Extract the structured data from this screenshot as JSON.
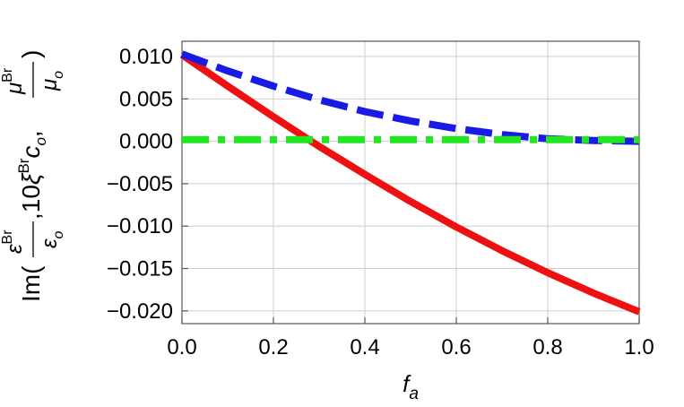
{
  "chart_data": {
    "type": "line",
    "title": "",
    "xlabel": {
      "main": "f",
      "sub": "a"
    },
    "ylabel": {
      "prefix": "Im(",
      "t1_num_main": "ε",
      "t1_num_sup": "Br",
      "t1_den_main": "ε",
      "t1_den_sub": "o",
      "middle": ",10",
      "t2_main1": "ξ",
      "t2_sup": "Br",
      "t2_main2": "c",
      "t2_sub": "o",
      "comma": ",",
      "t3_num_main": "μ",
      "t3_num_sup": "Br",
      "t3_den_main": "μ",
      "t3_den_sub": "o",
      "suffix": ")"
    },
    "xlim": [
      0,
      1
    ],
    "ylim": [
      -0.0215,
      0.0118
    ],
    "x_ticks": [
      0.0,
      0.2,
      0.4,
      0.6,
      0.8,
      1.0
    ],
    "x_tick_labels": [
      "0.0",
      "0.2",
      "0.4",
      "0.6",
      "0.8",
      "1.0"
    ],
    "y_ticks": [
      0.01,
      0.005,
      0.0,
      -0.005,
      -0.01,
      -0.015,
      -0.02
    ],
    "y_tick_labels": [
      "0.010",
      "0.005",
      "0.000",
      "−0.005",
      "−0.010",
      "−0.015",
      "−0.020"
    ],
    "grid": true,
    "legend": "none",
    "series": [
      {
        "color": "#ee1111",
        "style": "solid",
        "x": [
          0,
          0.1,
          0.2,
          0.3,
          0.4,
          0.5,
          0.6,
          0.7,
          0.8,
          0.9,
          1.0
        ],
        "y": [
          0.0102,
          0.0065,
          0.0029,
          -0.0006,
          -0.0039,
          -0.0071,
          -0.0101,
          -0.0129,
          -0.0155,
          -0.0179,
          -0.0201
        ]
      },
      {
        "color": "#1a1ae6",
        "style": "dashed",
        "x": [
          0,
          0.1,
          0.2,
          0.3,
          0.4,
          0.5,
          0.6,
          0.7,
          0.8,
          0.9,
          1.0
        ],
        "y": [
          0.0103,
          0.0083,
          0.0065,
          0.0049,
          0.0035,
          0.0024,
          0.0015,
          0.0008,
          0.0003,
          0.0001,
          0.0
        ]
      },
      {
        "color": "#22e622",
        "style": "dashdot",
        "x": [
          0,
          0.25,
          0.5,
          0.75,
          1.0
        ],
        "y": [
          0.0002,
          0.0002,
          0.0002,
          0.0002,
          0.0002
        ]
      }
    ]
  }
}
